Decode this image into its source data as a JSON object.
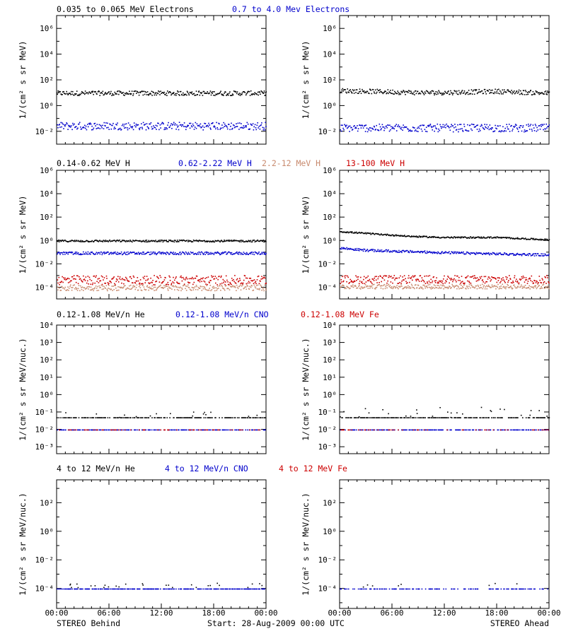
{
  "footer": {
    "left": "STEREO Behind",
    "center": "Start: 28-Aug-2009 00:00 UTC",
    "right": "STEREO Ahead"
  },
  "x_ticks": [
    "00:00",
    "06:00",
    "12:00",
    "18:00",
    "00:00"
  ],
  "row_titles": [
    [
      {
        "text": "0.035 to 0.065 MeV Electrons",
        "color": "#000000"
      },
      {
        "text": "0.7 to 4.0 Mev Electrons",
        "color": "#0000cc"
      }
    ],
    [
      {
        "text": "0.14-0.62 MeV H",
        "color": "#000000"
      },
      {
        "text": "0.62-2.22 MeV H",
        "color": "#0000cc"
      },
      {
        "text": "2.2-12 MeV H",
        "color": "#c88a6e"
      },
      {
        "text": "13-100 MeV H",
        "color": "#cc0000"
      }
    ],
    [
      {
        "text": "0.12-1.08 MeV/n He",
        "color": "#000000"
      },
      {
        "text": "0.12-1.08 MeV/n CNO",
        "color": "#0000cc"
      },
      {
        "text": "0.12-1.08 MeV Fe",
        "color": "#cc0000"
      }
    ],
    [
      {
        "text": "4 to 12 MeV/n He",
        "color": "#000000"
      },
      {
        "text": "4 to 12 MeV/n CNO",
        "color": "#0000cc"
      },
      {
        "text": "4 to 12 MeV Fe",
        "color": "#cc0000"
      }
    ]
  ],
  "row_ylabels": [
    "1/(cm² s sr MeV)",
    "1/(cm² s sr MeV)",
    "1/(cm² s sr MeV/nuc.)",
    "1/(cm² s sr MeV/nuc.)"
  ],
  "chart_data": [
    {
      "type": "scatter",
      "row": 0,
      "col": 0,
      "yscale": "log",
      "ylim_exp": [
        -3,
        7
      ],
      "tick_exps": [
        -2,
        0,
        2,
        4,
        6
      ],
      "xlim_hours": [
        0,
        24
      ],
      "series": [
        {
          "color": "#000000",
          "base_exp": 1.0,
          "jitter": 0.18,
          "trend": []
        },
        {
          "color": "#0000cc",
          "base_exp": -1.55,
          "jitter": 0.3,
          "trend": []
        }
      ]
    },
    {
      "type": "scatter",
      "row": 0,
      "col": 1,
      "yscale": "log",
      "ylim_exp": [
        -3,
        7
      ],
      "tick_exps": [
        -2,
        0,
        2,
        4,
        6
      ],
      "xlim_hours": [
        0,
        24
      ],
      "series": [
        {
          "color": "#000000",
          "base_exp": 1.05,
          "jitter": 0.18,
          "trend": [
            [
              0,
              1.2
            ],
            [
              6,
              1.1
            ],
            [
              9,
              1.05
            ],
            [
              12,
              1.05
            ],
            [
              18,
              1.15
            ],
            [
              24,
              1.0
            ]
          ]
        },
        {
          "color": "#0000cc",
          "base_exp": -1.7,
          "jitter": 0.3,
          "trend": []
        }
      ]
    },
    {
      "type": "scatter",
      "row": 1,
      "col": 0,
      "yscale": "log",
      "ylim_exp": [
        -5,
        6
      ],
      "tick_exps": [
        -4,
        -2,
        0,
        2,
        4,
        6
      ],
      "xlim_hours": [
        0,
        24
      ],
      "series": [
        {
          "color": "#000000",
          "base_exp": 0.0,
          "jitter": 0.08,
          "trend": []
        },
        {
          "color": "#0000cc",
          "base_exp": -1.05,
          "jitter": 0.12,
          "trend": []
        },
        {
          "color": "#cc0000",
          "base_exp": -3.35,
          "jitter": 0.4,
          "trend": []
        },
        {
          "color": "#c88a6e",
          "base_exp": -4.0,
          "jitter": 0.25,
          "trend": []
        }
      ]
    },
    {
      "type": "scatter",
      "row": 1,
      "col": 1,
      "yscale": "log",
      "ylim_exp": [
        -5,
        6
      ],
      "tick_exps": [
        -4,
        -2,
        0,
        2,
        4,
        6
      ],
      "xlim_hours": [
        0,
        24
      ],
      "series": [
        {
          "color": "#000000",
          "base_exp": 0.5,
          "jitter": 0.06,
          "trend": [
            [
              0,
              0.8
            ],
            [
              3,
              0.65
            ],
            [
              8,
              0.4
            ],
            [
              12,
              0.3
            ],
            [
              18,
              0.3
            ],
            [
              24,
              0.1
            ]
          ]
        },
        {
          "color": "#0000cc",
          "base_exp": -0.9,
          "jitter": 0.1,
          "trend": [
            [
              0,
              -0.6
            ],
            [
              3,
              -0.8
            ],
            [
              12,
              -1.0
            ],
            [
              24,
              -1.2
            ]
          ]
        },
        {
          "color": "#cc0000",
          "base_exp": -3.3,
          "jitter": 0.35,
          "trend": []
        },
        {
          "color": "#c88a6e",
          "base_exp": -3.9,
          "jitter": 0.2,
          "trend": []
        }
      ]
    },
    {
      "type": "scatter",
      "row": 2,
      "col": 0,
      "yscale": "log",
      "ylim_exp": [
        -3.4,
        4
      ],
      "tick_exps": [
        -3,
        -2,
        -1,
        0,
        1,
        2,
        3,
        4
      ],
      "xlim_hours": [
        0,
        24
      ],
      "series": [
        {
          "color": "#000000",
          "base_exp": -1.3,
          "jitter": 0.0,
          "sparse": 0.65,
          "upper_exp": -0.95,
          "trend": []
        },
        {
          "color": "#0000cc",
          "base_exp": -2.0,
          "jitter": 0.0,
          "sparse": 0.55,
          "trend": []
        },
        {
          "color": "#cc0000",
          "base_exp": -2.0,
          "jitter": 0.0,
          "sparse": 0.18,
          "trend": []
        }
      ]
    },
    {
      "type": "scatter",
      "row": 2,
      "col": 1,
      "yscale": "log",
      "ylim_exp": [
        -3.4,
        4
      ],
      "tick_exps": [
        -3,
        -2,
        -1,
        0,
        1,
        2,
        3,
        4
      ],
      "xlim_hours": [
        0,
        24
      ],
      "series": [
        {
          "color": "#000000",
          "base_exp": -1.3,
          "jitter": 0.0,
          "sparse": 0.7,
          "upper_exp": -0.7,
          "trend": []
        },
        {
          "color": "#0000cc",
          "base_exp": -2.0,
          "jitter": 0.0,
          "sparse": 0.55,
          "trend": []
        },
        {
          "color": "#cc0000",
          "base_exp": -2.0,
          "jitter": 0.0,
          "sparse": 0.15,
          "trend": []
        }
      ]
    },
    {
      "type": "scatter",
      "row": 3,
      "col": 0,
      "yscale": "log",
      "ylim_exp": [
        -5.4,
        3.6
      ],
      "tick_exps": [
        -4,
        -2,
        0,
        2
      ],
      "xlim_hours": [
        0,
        24
      ],
      "series": [
        {
          "color": "#0000cc",
          "base_exp": -4.0,
          "jitter": 0.0,
          "sparse": 0.7,
          "trend": []
        },
        {
          "color": "#000000",
          "base_exp": -3.75,
          "jitter": 0.15,
          "sparse": 0.1,
          "trend": []
        }
      ]
    },
    {
      "type": "scatter",
      "row": 3,
      "col": 1,
      "yscale": "log",
      "ylim_exp": [
        -5.4,
        3.6
      ],
      "tick_exps": [
        -4,
        -2,
        0,
        2
      ],
      "xlim_hours": [
        0,
        24
      ],
      "series": [
        {
          "color": "#0000cc",
          "base_exp": -4.0,
          "jitter": 0.0,
          "sparse": 0.35,
          "trend": []
        },
        {
          "color": "#000000",
          "base_exp": -3.75,
          "jitter": 0.15,
          "sparse": 0.04,
          "trend": []
        }
      ]
    }
  ]
}
